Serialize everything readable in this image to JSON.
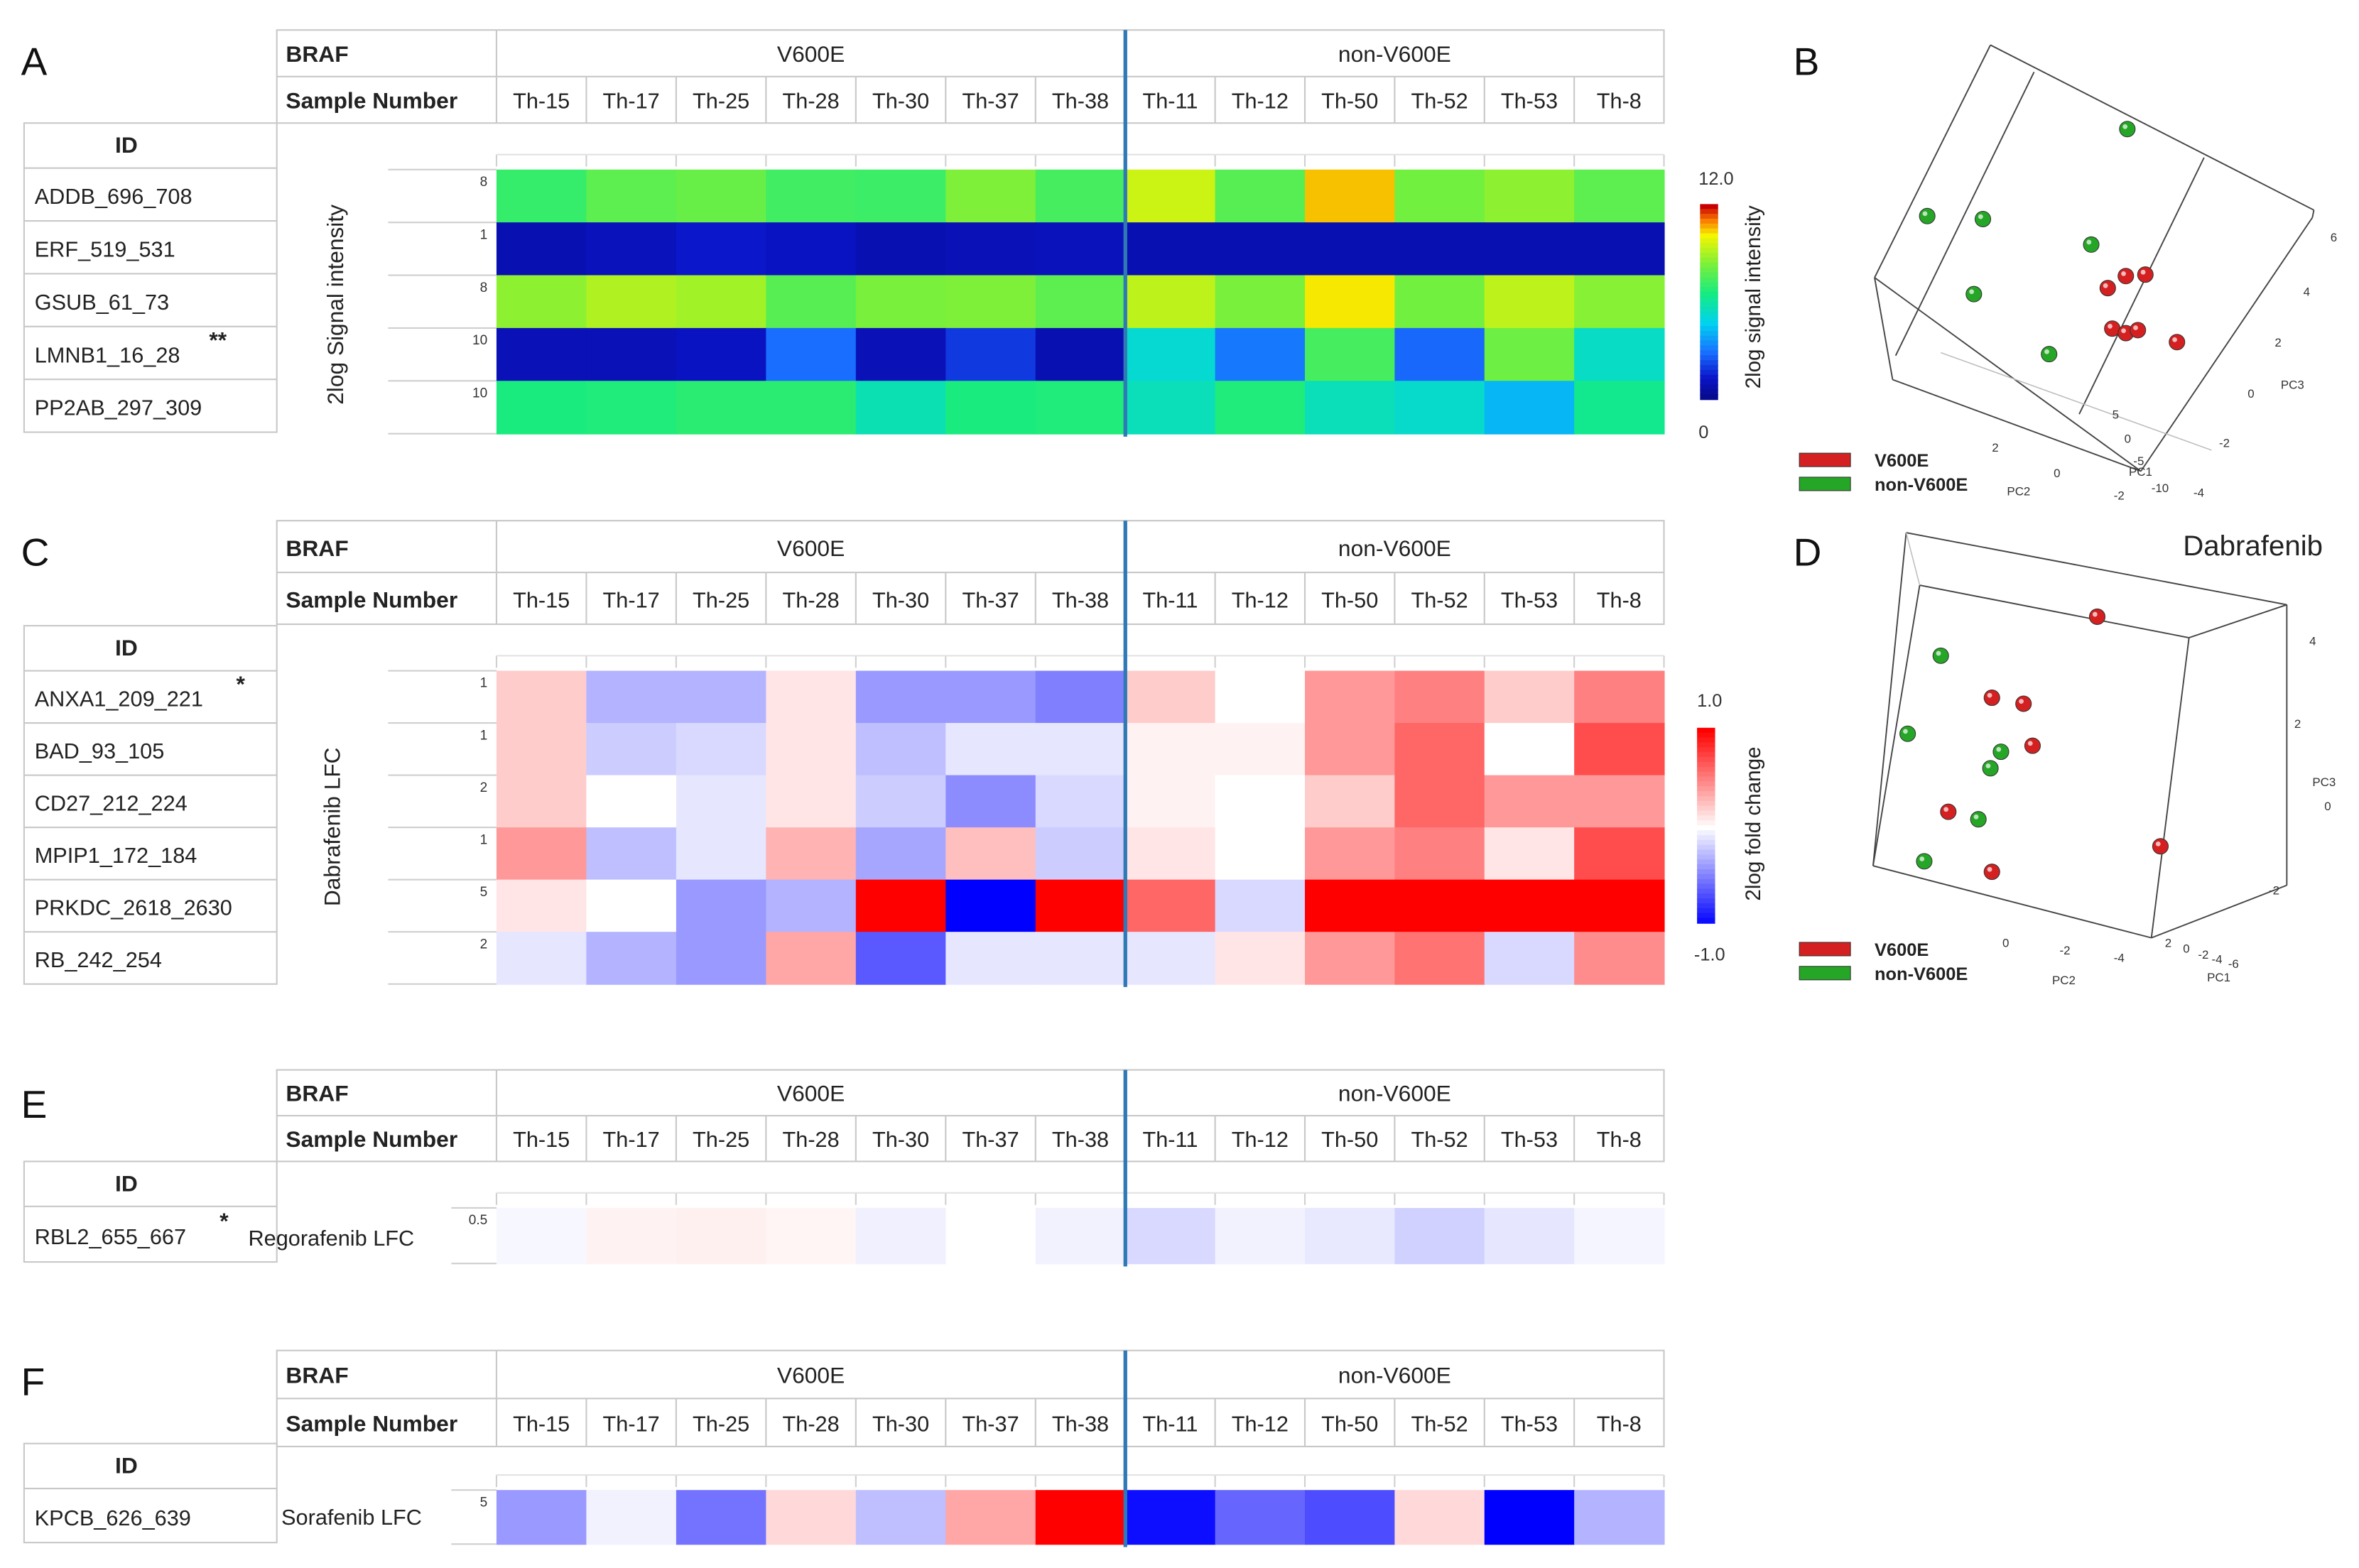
{
  "chart_data": [
    {
      "panel": "A",
      "type": "heatmap",
      "group_label": "BRAF",
      "sample_label": "Sample Number",
      "id_label": "ID",
      "groups": [
        "V600E",
        "non-V600E"
      ],
      "samples": [
        "Th-15",
        "Th-17",
        "Th-25",
        "Th-28",
        "Th-30",
        "Th-37",
        "Th-38",
        "Th-11",
        "Th-12",
        "Th-50",
        "Th-52",
        "Th-53",
        "Th-8"
      ],
      "rows": [
        {
          "id": "ADDB_696_708",
          "mark": "",
          "scale": "8",
          "values": [
            7.2,
            7.9,
            8.1,
            7.4,
            7.3,
            8.5,
            7.5,
            9.6,
            7.8,
            10.6,
            8.3,
            8.7,
            7.9
          ]
        },
        {
          "id": "ERF_519_531",
          "mark": "",
          "scale": "1",
          "values": [
            1.0,
            1.2,
            1.5,
            1.3,
            1.0,
            1.1,
            1.2,
            1.0,
            1.0,
            1.0,
            1.0,
            1.0,
            1.0
          ]
        },
        {
          "id": "GSUB_61_73",
          "mark": "",
          "scale": "8",
          "values": [
            8.7,
            9.2,
            9.0,
            7.8,
            8.4,
            8.5,
            7.9,
            9.4,
            8.4,
            10.3,
            8.3,
            9.4,
            8.6
          ]
        },
        {
          "id": "LMNB1_16_28",
          "mark": "**",
          "scale": "10",
          "values": [
            1.1,
            1.1,
            1.3,
            3.0,
            1.1,
            2.1,
            1.0,
            5.3,
            3.2,
            7.5,
            2.9,
            8.2,
            5.5
          ]
        },
        {
          "id": "PP2AB_297_309",
          "mark": "",
          "scale": "10",
          "values": [
            6.7,
            6.8,
            7.0,
            7.0,
            5.8,
            6.7,
            6.8,
            5.7,
            6.8,
            5.7,
            5.4,
            4.3,
            6.4
          ]
        }
      ],
      "ylabel": "2log Signal intensity",
      "colorbar": {
        "label": "2log signal intensity",
        "max": "12.0",
        "min": "0"
      }
    },
    {
      "panel": "B",
      "type": "scatter",
      "title": "",
      "axes": [
        "PC1",
        "PC2",
        "PC3"
      ],
      "legend": [
        "V600E",
        "non-V600E"
      ],
      "colors": {
        "V600E": "#d42020",
        "non-V600E": "#26a626"
      },
      "ticks": {
        "pc3": [
          "6",
          "4",
          "2",
          "0",
          "-2",
          "-4"
        ],
        "pc2": [
          "2",
          "0",
          "-2"
        ],
        "pc1": [
          "5",
          "0",
          "-5",
          "-10"
        ]
      }
    },
    {
      "panel": "C",
      "type": "heatmap",
      "group_label": "BRAF",
      "sample_label": "Sample Number",
      "id_label": "ID",
      "groups": [
        "V600E",
        "non-V600E"
      ],
      "samples": [
        "Th-15",
        "Th-17",
        "Th-25",
        "Th-28",
        "Th-30",
        "Th-37",
        "Th-38",
        "Th-11",
        "Th-12",
        "Th-50",
        "Th-52",
        "Th-53",
        "Th-8"
      ],
      "rows": [
        {
          "id": "ANXA1_209_221",
          "mark": "*",
          "scale": "1",
          "values": [
            0.2,
            -0.3,
            -0.3,
            0.1,
            -0.4,
            -0.4,
            -0.5,
            0.2,
            0.0,
            0.4,
            0.5,
            0.2,
            0.5
          ]
        },
        {
          "id": "BAD_93_105",
          "mark": "",
          "scale": "1",
          "values": [
            0.2,
            -0.2,
            -0.15,
            0.1,
            -0.25,
            -0.1,
            -0.1,
            0.05,
            0.05,
            0.4,
            0.6,
            0.0,
            0.7
          ]
        },
        {
          "id": "CD27_212_224",
          "mark": "",
          "scale": "2",
          "values": [
            0.2,
            0.0,
            -0.1,
            0.1,
            -0.2,
            -0.45,
            -0.15,
            0.05,
            0.0,
            0.2,
            0.6,
            0.4,
            0.4
          ]
        },
        {
          "id": "MPIP1_172_184",
          "mark": "",
          "scale": "1",
          "values": [
            0.4,
            -0.25,
            -0.1,
            0.3,
            -0.35,
            0.25,
            -0.2,
            0.1,
            0.0,
            0.4,
            0.5,
            0.1,
            0.7
          ]
        },
        {
          "id": "PRKDC_2618_2630",
          "mark": "",
          "scale": "5",
          "values": [
            0.1,
            0.0,
            -0.4,
            -0.3,
            1.0,
            -1.0,
            1.0,
            0.6,
            -0.15,
            1.0,
            1.0,
            1.0,
            1.0
          ]
        },
        {
          "id": "RB_242_254",
          "mark": "",
          "scale": "2",
          "values": [
            -0.1,
            -0.3,
            -0.4,
            0.35,
            -0.65,
            -0.1,
            -0.1,
            -0.1,
            0.1,
            0.4,
            0.55,
            -0.15,
            0.45
          ]
        }
      ],
      "ylabel": "Dabrafenib LFC",
      "colorbar": {
        "label": "2log fold change",
        "max": "1.0",
        "min": "-1.0"
      }
    },
    {
      "panel": "D",
      "type": "scatter",
      "title": "Dabrafenib",
      "axes": [
        "PC1",
        "PC2",
        "PC3"
      ],
      "legend": [
        "V600E",
        "non-V600E"
      ],
      "colors": {
        "V600E": "#d42020",
        "non-V600E": "#26a626"
      },
      "ticks": {
        "pc3": [
          "4",
          "2",
          "0",
          "-2"
        ],
        "pc2": [
          "0",
          "-2",
          "-4"
        ],
        "pc1": [
          "2",
          "0",
          "-2",
          "-4",
          "-6"
        ]
      }
    },
    {
      "panel": "E",
      "type": "heatmap",
      "group_label": "BRAF",
      "sample_label": "Sample Number",
      "id_label": "ID",
      "groups": [
        "V600E",
        "non-V600E"
      ],
      "samples": [
        "Th-15",
        "Th-17",
        "Th-25",
        "Th-28",
        "Th-30",
        "Th-37",
        "Th-38",
        "Th-11",
        "Th-12",
        "Th-50",
        "Th-52",
        "Th-53",
        "Th-8"
      ],
      "rows": [
        {
          "id": "RBL2_655_667",
          "mark": "*",
          "scale": "0.5",
          "values": [
            -0.03,
            0.05,
            0.06,
            0.04,
            -0.06,
            0.0,
            -0.05,
            -0.15,
            -0.05,
            -0.09,
            -0.18,
            -0.1,
            -0.04
          ]
        }
      ],
      "ylabel": "Regorafenib LFC",
      "colorbar": {
        "max": "1.0",
        "min": "-1.0"
      }
    },
    {
      "panel": "F",
      "type": "heatmap",
      "group_label": "BRAF",
      "sample_label": "Sample Number",
      "id_label": "ID",
      "groups": [
        "V600E",
        "non-V600E"
      ],
      "samples": [
        "Th-15",
        "Th-17",
        "Th-25",
        "Th-28",
        "Th-30",
        "Th-37",
        "Th-38",
        "Th-11",
        "Th-12",
        "Th-50",
        "Th-52",
        "Th-53",
        "Th-8"
      ],
      "rows": [
        {
          "id": "KPCB_626_639",
          "mark": "",
          "scale": "5",
          "values": [
            -0.4,
            -0.05,
            -0.55,
            0.15,
            -0.25,
            0.35,
            1.0,
            -0.95,
            -0.6,
            -0.7,
            0.15,
            -1.0,
            -0.3
          ]
        }
      ],
      "ylabel": "Sorafenib LFC",
      "colorbar": {
        "max": "1.0",
        "min": "-1.0"
      }
    }
  ]
}
